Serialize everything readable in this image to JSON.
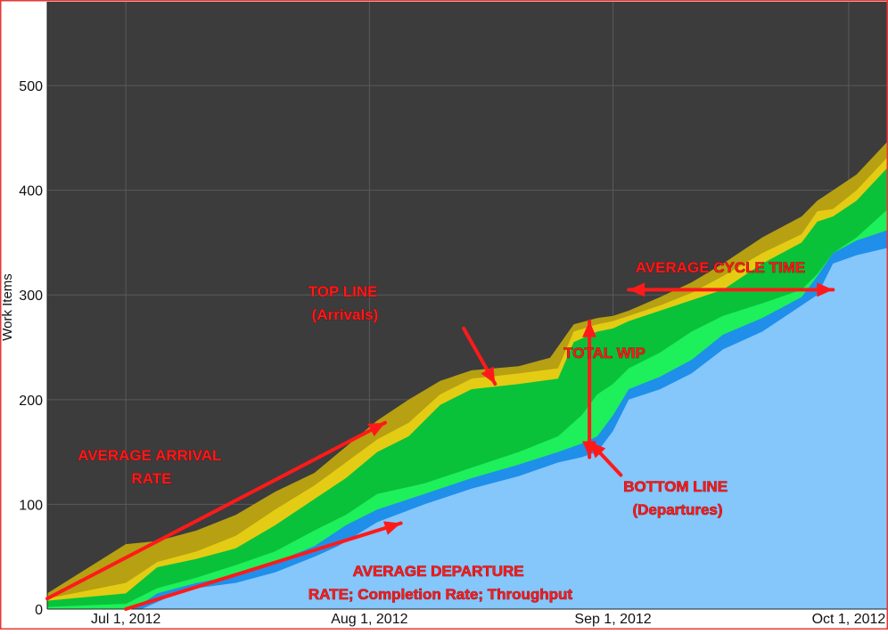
{
  "colors": {
    "plot_bg": "#3c3c3c",
    "grid": "#5a5a5a",
    "band_done": "#85c6fb",
    "band_blue": "#1f8fea",
    "band_lightgreen": "#1df05a",
    "band_green": "#0ac23a",
    "band_yellow": "#e4cc14",
    "band_olive": "#b7a012",
    "annotation": "#ff1a1a",
    "border": "#e53935"
  },
  "chart_data": {
    "type": "area",
    "stacked": true,
    "ylabel": "Work Items",
    "xlabel": "",
    "ylim": [
      0,
      580
    ],
    "xlim": [
      "2012-06-21",
      "2012-10-06"
    ],
    "y_ticks": [
      0,
      100,
      200,
      300,
      400,
      500
    ],
    "x_ticks": [
      {
        "date": "2012-07-01",
        "label": "Jul 1, 2012"
      },
      {
        "date": "2012-08-01",
        "label": "Aug 1, 2012"
      },
      {
        "date": "2012-09-01",
        "label": "Sep 1, 2012"
      },
      {
        "date": "2012-10-01",
        "label": "Oct 1, 2012"
      }
    ],
    "grid": true,
    "legend": "none",
    "cumulative_series": [
      {
        "color_key": "band_done",
        "points": [
          [
            "2012-06-21",
            0
          ],
          [
            "2012-07-03",
            0
          ],
          [
            "2012-07-06",
            10
          ],
          [
            "2012-07-10",
            20
          ],
          [
            "2012-07-15",
            25
          ],
          [
            "2012-07-20",
            35
          ],
          [
            "2012-07-25",
            50
          ],
          [
            "2012-07-28",
            60
          ],
          [
            "2012-08-02",
            83
          ],
          [
            "2012-08-08",
            100
          ],
          [
            "2012-08-14",
            115
          ],
          [
            "2012-08-20",
            127
          ],
          [
            "2012-08-25",
            140
          ],
          [
            "2012-08-28",
            145
          ],
          [
            "2012-08-30",
            150
          ],
          [
            "2012-09-01",
            170
          ],
          [
            "2012-09-03",
            200
          ],
          [
            "2012-09-07",
            210
          ],
          [
            "2012-09-11",
            225
          ],
          [
            "2012-09-15",
            248
          ],
          [
            "2012-09-20",
            265
          ],
          [
            "2012-09-25",
            290
          ],
          [
            "2012-09-27",
            300
          ],
          [
            "2012-09-29",
            330
          ],
          [
            "2012-10-02",
            338
          ],
          [
            "2012-10-06",
            345
          ]
        ]
      },
      {
        "color_key": "band_blue",
        "points": [
          [
            "2012-06-21",
            0
          ],
          [
            "2012-07-02",
            0
          ],
          [
            "2012-07-05",
            15
          ],
          [
            "2012-07-10",
            25
          ],
          [
            "2012-07-15",
            32
          ],
          [
            "2012-07-20",
            45
          ],
          [
            "2012-07-25",
            60
          ],
          [
            "2012-07-29",
            80
          ],
          [
            "2012-08-02",
            95
          ],
          [
            "2012-08-08",
            110
          ],
          [
            "2012-08-14",
            125
          ],
          [
            "2012-08-20",
            138
          ],
          [
            "2012-08-25",
            150
          ],
          [
            "2012-08-28",
            158
          ],
          [
            "2012-08-30",
            165
          ],
          [
            "2012-09-01",
            185
          ],
          [
            "2012-09-03",
            210
          ],
          [
            "2012-09-07",
            222
          ],
          [
            "2012-09-11",
            238
          ],
          [
            "2012-09-15",
            262
          ],
          [
            "2012-09-20",
            278
          ],
          [
            "2012-09-25",
            298
          ],
          [
            "2012-09-27",
            318
          ],
          [
            "2012-09-29",
            340
          ],
          [
            "2012-10-02",
            352
          ],
          [
            "2012-10-06",
            362
          ]
        ]
      },
      {
        "color_key": "band_lightgreen",
        "points": [
          [
            "2012-06-21",
            2
          ],
          [
            "2012-07-01",
            5
          ],
          [
            "2012-07-05",
            20
          ],
          [
            "2012-07-10",
            30
          ],
          [
            "2012-07-15",
            42
          ],
          [
            "2012-07-20",
            55
          ],
          [
            "2012-07-25",
            75
          ],
          [
            "2012-07-29",
            90
          ],
          [
            "2012-08-02",
            110
          ],
          [
            "2012-08-08",
            120
          ],
          [
            "2012-08-14",
            135
          ],
          [
            "2012-08-20",
            150
          ],
          [
            "2012-08-25",
            165
          ],
          [
            "2012-08-28",
            185
          ],
          [
            "2012-08-30",
            205
          ],
          [
            "2012-09-01",
            215
          ],
          [
            "2012-09-03",
            230
          ],
          [
            "2012-09-07",
            245
          ],
          [
            "2012-09-11",
            265
          ],
          [
            "2012-09-15",
            280
          ],
          [
            "2012-09-20",
            292
          ],
          [
            "2012-09-25",
            305
          ],
          [
            "2012-09-27",
            320
          ],
          [
            "2012-09-29",
            340
          ],
          [
            "2012-10-02",
            355
          ],
          [
            "2012-10-06",
            382
          ]
        ]
      },
      {
        "color_key": "band_green",
        "points": [
          [
            "2012-06-21",
            8
          ],
          [
            "2012-07-01",
            15
          ],
          [
            "2012-07-05",
            40
          ],
          [
            "2012-07-10",
            48
          ],
          [
            "2012-07-15",
            58
          ],
          [
            "2012-07-20",
            80
          ],
          [
            "2012-07-25",
            105
          ],
          [
            "2012-07-29",
            125
          ],
          [
            "2012-08-02",
            150
          ],
          [
            "2012-08-06",
            165
          ],
          [
            "2012-08-10",
            195
          ],
          [
            "2012-08-14",
            210
          ],
          [
            "2012-08-20",
            215
          ],
          [
            "2012-08-25",
            220
          ],
          [
            "2012-08-27",
            255
          ],
          [
            "2012-08-30",
            265
          ],
          [
            "2012-09-01",
            268
          ],
          [
            "2012-09-03",
            275
          ],
          [
            "2012-09-07",
            285
          ],
          [
            "2012-09-11",
            295
          ],
          [
            "2012-09-15",
            305
          ],
          [
            "2012-09-20",
            330
          ],
          [
            "2012-09-25",
            350
          ],
          [
            "2012-09-27",
            370
          ],
          [
            "2012-09-29",
            375
          ],
          [
            "2012-10-02",
            390
          ],
          [
            "2012-10-06",
            422
          ]
        ]
      },
      {
        "color_key": "band_yellow",
        "points": [
          [
            "2012-06-21",
            10
          ],
          [
            "2012-07-01",
            25
          ],
          [
            "2012-07-05",
            45
          ],
          [
            "2012-07-10",
            55
          ],
          [
            "2012-07-15",
            70
          ],
          [
            "2012-07-20",
            95
          ],
          [
            "2012-07-25",
            118
          ],
          [
            "2012-07-29",
            140
          ],
          [
            "2012-08-02",
            162
          ],
          [
            "2012-08-06",
            178
          ],
          [
            "2012-08-10",
            205
          ],
          [
            "2012-08-14",
            220
          ],
          [
            "2012-08-20",
            225
          ],
          [
            "2012-08-25",
            230
          ],
          [
            "2012-08-27",
            265
          ],
          [
            "2012-08-30",
            272
          ],
          [
            "2012-09-01",
            275
          ],
          [
            "2012-09-03",
            280
          ],
          [
            "2012-09-07",
            290
          ],
          [
            "2012-09-11",
            302
          ],
          [
            "2012-09-15",
            318
          ],
          [
            "2012-09-20",
            340
          ],
          [
            "2012-09-25",
            358
          ],
          [
            "2012-09-27",
            380
          ],
          [
            "2012-09-29",
            382
          ],
          [
            "2012-10-02",
            400
          ],
          [
            "2012-10-06",
            432
          ]
        ]
      },
      {
        "color_key": "band_olive",
        "points": [
          [
            "2012-06-21",
            15
          ],
          [
            "2012-07-01",
            62
          ],
          [
            "2012-07-05",
            65
          ],
          [
            "2012-07-10",
            75
          ],
          [
            "2012-07-15",
            90
          ],
          [
            "2012-07-20",
            112
          ],
          [
            "2012-07-25",
            130
          ],
          [
            "2012-07-29",
            155
          ],
          [
            "2012-08-02",
            180
          ],
          [
            "2012-08-06",
            200
          ],
          [
            "2012-08-10",
            218
          ],
          [
            "2012-08-14",
            228
          ],
          [
            "2012-08-20",
            232
          ],
          [
            "2012-08-24",
            240
          ],
          [
            "2012-08-27",
            272
          ],
          [
            "2012-08-30",
            278
          ],
          [
            "2012-09-01",
            280
          ],
          [
            "2012-09-03",
            285
          ],
          [
            "2012-09-07",
            298
          ],
          [
            "2012-09-11",
            312
          ],
          [
            "2012-09-15",
            330
          ],
          [
            "2012-09-20",
            355
          ],
          [
            "2012-09-25",
            375
          ],
          [
            "2012-09-27",
            390
          ],
          [
            "2012-09-29",
            400
          ],
          [
            "2012-10-02",
            415
          ],
          [
            "2012-10-06",
            447
          ]
        ]
      }
    ],
    "annotations": [
      {
        "id": "avg-arrival",
        "lines": [
          "AVERAGE ARRIVAL",
          "RATE"
        ]
      },
      {
        "id": "top-line",
        "lines": [
          "TOP LINE",
          "(Arrivals)"
        ]
      },
      {
        "id": "total-wip",
        "lines": [
          "TOTAL WIP"
        ]
      },
      {
        "id": "avg-cycle",
        "lines": [
          "AVERAGE CYCLE TIME"
        ]
      },
      {
        "id": "bottom-line",
        "lines": [
          "BOTTOM LINE",
          "(Departures)"
        ]
      },
      {
        "id": "avg-departure",
        "lines": [
          "AVERAGE DEPARTURE",
          "RATE; Completion Rate; Throughput"
        ]
      }
    ],
    "arrows": [
      {
        "id": "arrival-rate",
        "from": [
          "2012-06-21",
          10
        ],
        "to": [
          "2012-08-03",
          178
        ],
        "heads": [
          "end"
        ]
      },
      {
        "id": "departure-rate",
        "from": [
          "2012-07-01",
          0
        ],
        "to": [
          "2012-08-05",
          82
        ],
        "heads": [
          "end"
        ]
      },
      {
        "id": "top-line-pointer",
        "from": [
          "2012-08-13",
          268
        ],
        "to": [
          "2012-08-17",
          215
        ],
        "heads": [
          "end"
        ]
      },
      {
        "id": "bottom-line-pointer",
        "from": [
          "2012-09-02",
          128
        ],
        "to": [
          "2012-08-29",
          160
        ],
        "heads": [
          "end"
        ]
      },
      {
        "id": "wip-span",
        "from": [
          "2012-08-29",
          145
        ],
        "to": [
          "2012-08-29",
          275
        ],
        "heads": [
          "start",
          "end"
        ]
      },
      {
        "id": "cycle-span",
        "from": [
          "2012-09-03",
          305
        ],
        "to": [
          "2012-09-29",
          305
        ],
        "heads": [
          "start",
          "end"
        ]
      }
    ]
  }
}
